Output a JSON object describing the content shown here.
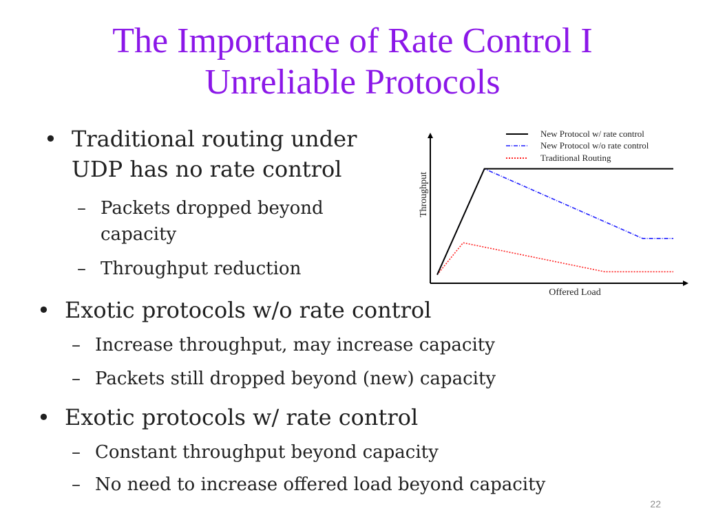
{
  "slide": {
    "title_line1": "The Importance of Rate Control I",
    "title_line2": "Unreliable Protocols",
    "page_number": "22",
    "title_color": "#8b17e8"
  },
  "bullets": [
    {
      "lines": [
        "Traditional routing under",
        "UDP has no rate control"
      ],
      "subs": [
        {
          "lines": [
            "Packets dropped beyond",
            "capacity"
          ]
        },
        {
          "lines": [
            "Throughput reduction"
          ]
        }
      ]
    },
    {
      "lines": [
        "Exotic protocols w/o rate control"
      ],
      "subs": [
        {
          "lines": [
            "Increase throughput, may increase capacity"
          ]
        },
        {
          "lines": [
            "Packets still dropped beyond (new) capacity"
          ]
        }
      ]
    },
    {
      "lines": [
        "Exotic protocols w/ rate control"
      ],
      "subs": [
        {
          "lines": [
            "Constant throughput beyond capacity"
          ]
        },
        {
          "lines": [
            "No need to increase offered load beyond capacity"
          ]
        }
      ]
    }
  ],
  "chart_data": {
    "type": "line",
    "xlabel": "Offered Load",
    "ylabel": "Throughput",
    "grid": false,
    "legend_position": "top-right",
    "xlim": [
      0,
      100
    ],
    "ylim": [
      0,
      100
    ],
    "series": [
      {
        "name": "New Protocol w/ rate control",
        "color": "#000000",
        "style": "solid",
        "points": [
          [
            0,
            4
          ],
          [
            20,
            77
          ],
          [
            100,
            77
          ]
        ]
      },
      {
        "name": "New Protocol w/o rate control",
        "color": "#1a1aff",
        "style": "dashdot",
        "points": [
          [
            0,
            4
          ],
          [
            20,
            77
          ],
          [
            87,
            29
          ],
          [
            100,
            29
          ]
        ]
      },
      {
        "name": "Traditional Routing",
        "color": "#ff2020",
        "style": "dotted",
        "points": [
          [
            0,
            4
          ],
          [
            11,
            26
          ],
          [
            71,
            6
          ],
          [
            100,
            6
          ]
        ]
      }
    ]
  }
}
